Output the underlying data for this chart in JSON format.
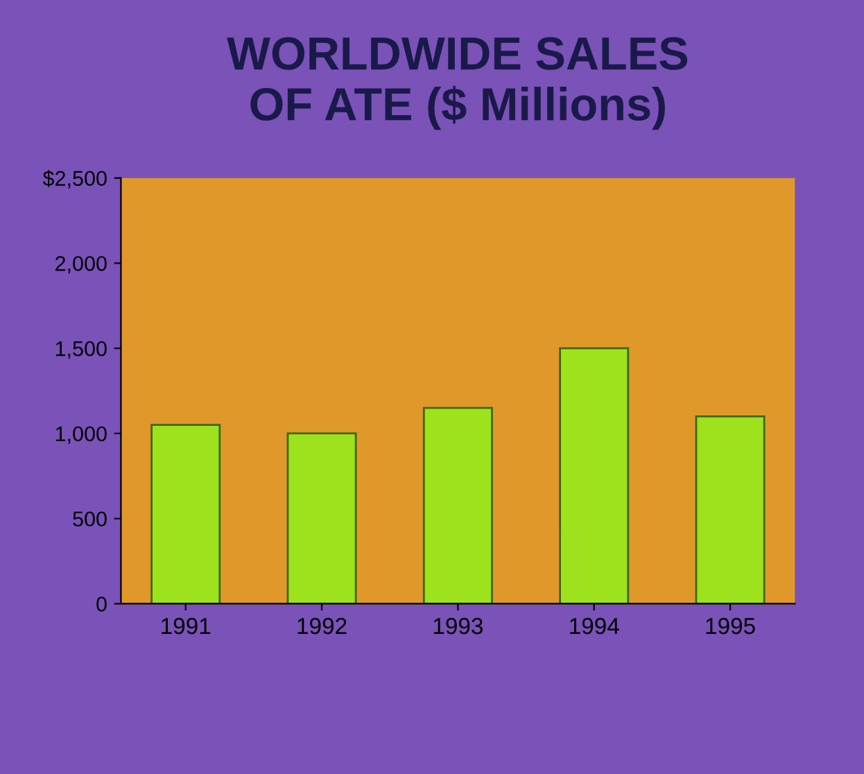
{
  "chart_data": {
    "type": "bar",
    "title": "WORLDWIDE SALES\nOF ATE ($ Millions)",
    "categories": [
      "1991",
      "1992",
      "1993",
      "1994",
      "1995"
    ],
    "values": [
      1050,
      1000,
      1150,
      1500,
      1100
    ],
    "color": "#9ee21e",
    "ylim": [
      0,
      2500
    ],
    "yticks": [
      {
        "value": 0,
        "label": "0"
      },
      {
        "value": 500,
        "label": "500"
      },
      {
        "value": 1000,
        "label": "1,000"
      },
      {
        "value": 1500,
        "label": "1,500"
      },
      {
        "value": 2000,
        "label": "2,000"
      },
      {
        "value": 2500,
        "label": "$2,500"
      }
    ],
    "grid": false
  }
}
